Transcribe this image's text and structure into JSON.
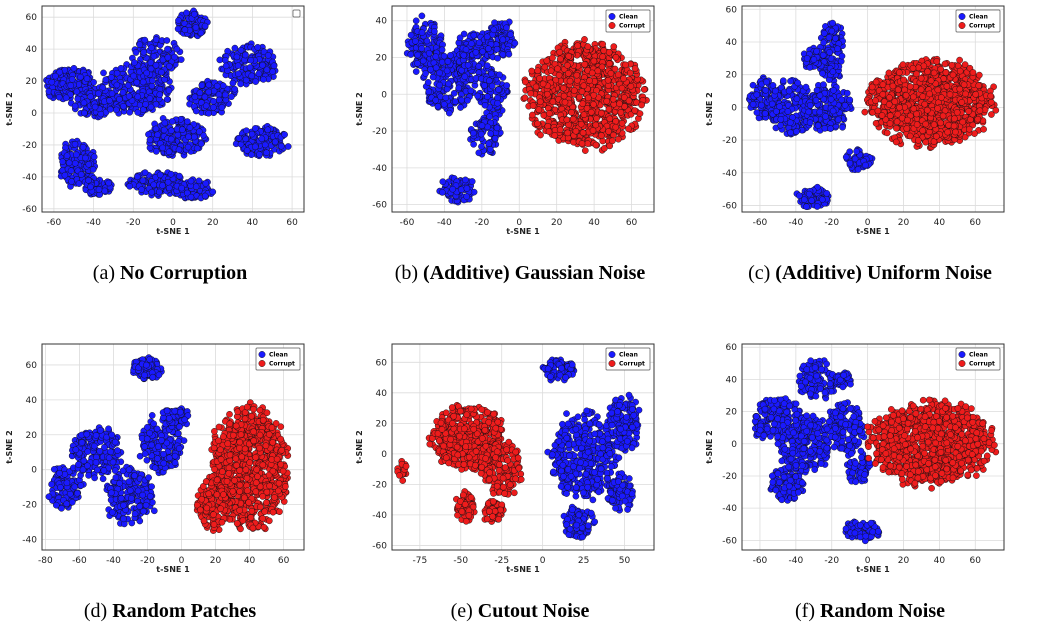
{
  "figure": {
    "panels": [
      {
        "label": "(a)",
        "caption": "No Corruption"
      },
      {
        "label": "(b)",
        "caption": "(Additive) Gaussian Noise"
      },
      {
        "label": "(c)",
        "caption": "(Additive) Uniform Noise"
      },
      {
        "label": "(d)",
        "caption": "Random Patches"
      },
      {
        "label": "(e)",
        "caption": "Cutout Noise"
      },
      {
        "label": "(f)",
        "caption": "Random Noise"
      }
    ]
  },
  "colors": {
    "clean": "#1a1aff",
    "corrupt": "#ee1c1c",
    "grid": "#dcdcdc",
    "edge": "#111111"
  },
  "chart_data": [
    {
      "type": "scatter",
      "xlabel": "t-SNE 1",
      "ylabel": "t-SNE 2",
      "xlim": [
        -66,
        66
      ],
      "ylim": [
        -62,
        67
      ],
      "xticks": [
        -60,
        -40,
        -20,
        0,
        20,
        40,
        60
      ],
      "yticks": [
        -60,
        -40,
        -20,
        0,
        20,
        40,
        60
      ],
      "grid": true,
      "legend": "top-right",
      "legend_entries": [],
      "clusters": [
        {
          "series": "Clean",
          "cx": -52,
          "cy": 18,
          "rx": 12,
          "ry": 10,
          "n": 170
        },
        {
          "series": "Clean",
          "cx": -40,
          "cy": 5,
          "rx": 10,
          "ry": 8,
          "n": 90
        },
        {
          "series": "Clean",
          "cx": -20,
          "cy": 15,
          "rx": 18,
          "ry": 15,
          "n": 260
        },
        {
          "series": "Clean",
          "cx": -8,
          "cy": 35,
          "rx": 12,
          "ry": 12,
          "n": 110
        },
        {
          "series": "Clean",
          "cx": 10,
          "cy": 55,
          "rx": 8,
          "ry": 8,
          "n": 80
        },
        {
          "series": "Clean",
          "cx": 38,
          "cy": 30,
          "rx": 14,
          "ry": 12,
          "n": 150
        },
        {
          "series": "Clean",
          "cx": 20,
          "cy": 10,
          "rx": 12,
          "ry": 10,
          "n": 120
        },
        {
          "series": "Clean",
          "cx": 2,
          "cy": -15,
          "rx": 15,
          "ry": 12,
          "n": 190
        },
        {
          "series": "Clean",
          "cx": 45,
          "cy": -18,
          "rx": 13,
          "ry": 9,
          "n": 140
        },
        {
          "series": "Clean",
          "cx": -48,
          "cy": -32,
          "rx": 9,
          "ry": 14,
          "n": 140
        },
        {
          "series": "Clean",
          "cx": -38,
          "cy": -46,
          "rx": 7,
          "ry": 6,
          "n": 55
        },
        {
          "series": "Clean",
          "cx": -8,
          "cy": -44,
          "rx": 14,
          "ry": 7,
          "n": 120
        },
        {
          "series": "Clean",
          "cx": 10,
          "cy": -48,
          "rx": 10,
          "ry": 6,
          "n": 80
        }
      ]
    },
    {
      "type": "scatter",
      "xlabel": "t-SNE 1",
      "ylabel": "t-SNE 2",
      "xlim": [
        -68,
        72
      ],
      "ylim": [
        -64,
        48
      ],
      "xticks": [
        -60,
        -40,
        -20,
        0,
        20,
        40,
        60
      ],
      "yticks": [
        -60,
        -40,
        -20,
        0,
        20,
        40
      ],
      "grid": true,
      "legend": "top-right",
      "legend_entries": [
        "Clean",
        "Corrupt"
      ],
      "clusters": [
        {
          "series": "Clean",
          "cx": -50,
          "cy": 25,
          "rx": 9,
          "ry": 16,
          "n": 140
        },
        {
          "series": "Clean",
          "cx": -38,
          "cy": 5,
          "rx": 12,
          "ry": 16,
          "n": 170
        },
        {
          "series": "Clean",
          "cx": -24,
          "cy": 20,
          "rx": 10,
          "ry": 14,
          "n": 140
        },
        {
          "series": "Clean",
          "cx": -10,
          "cy": 30,
          "rx": 8,
          "ry": 10,
          "n": 90
        },
        {
          "series": "Clean",
          "cx": -14,
          "cy": 0,
          "rx": 8,
          "ry": 12,
          "n": 90
        },
        {
          "series": "Clean",
          "cx": -18,
          "cy": -22,
          "rx": 8,
          "ry": 10,
          "n": 80
        },
        {
          "series": "Clean",
          "cx": -33,
          "cy": -52,
          "rx": 9,
          "ry": 7,
          "n": 70
        },
        {
          "series": "Corrupt",
          "cx": 35,
          "cy": 0,
          "rx": 30,
          "ry": 28,
          "n": 900
        }
      ]
    },
    {
      "type": "scatter",
      "xlabel": "t-SNE 1",
      "ylabel": "t-SNE 2",
      "xlim": [
        -70,
        76
      ],
      "ylim": [
        -64,
        62
      ],
      "xticks": [
        -60,
        -40,
        -20,
        0,
        20,
        40,
        60
      ],
      "yticks": [
        -60,
        -40,
        -20,
        0,
        20,
        40,
        60
      ],
      "grid": true,
      "legend": "top-right",
      "legend_entries": [
        "Clean",
        "Corrupt"
      ],
      "clusters": [
        {
          "series": "Clean",
          "cx": -58,
          "cy": 5,
          "rx": 8,
          "ry": 12,
          "n": 100
        },
        {
          "series": "Clean",
          "cx": -42,
          "cy": 0,
          "rx": 12,
          "ry": 16,
          "n": 170
        },
        {
          "series": "Clean",
          "cx": -20,
          "cy": 35,
          "rx": 7,
          "ry": 18,
          "n": 130
        },
        {
          "series": "Clean",
          "cx": -22,
          "cy": 0,
          "rx": 12,
          "ry": 14,
          "n": 150
        },
        {
          "series": "Clean",
          "cx": -30,
          "cy": 30,
          "rx": 6,
          "ry": 6,
          "n": 40
        },
        {
          "series": "Clean",
          "cx": -5,
          "cy": -32,
          "rx": 7,
          "ry": 6,
          "n": 60
        },
        {
          "series": "Clean",
          "cx": -30,
          "cy": -55,
          "rx": 10,
          "ry": 6,
          "n": 70
        },
        {
          "series": "Corrupt",
          "cx": 35,
          "cy": 3,
          "rx": 33,
          "ry": 25,
          "n": 950
        }
      ]
    },
    {
      "type": "scatter",
      "xlabel": "t-SNE 1",
      "ylabel": "t-SNE 2",
      "xlim": [
        -82,
        72
      ],
      "ylim": [
        -46,
        72
      ],
      "xticks": [
        -80,
        -60,
        -40,
        -20,
        0,
        20,
        40,
        60
      ],
      "yticks": [
        -40,
        -20,
        0,
        20,
        40,
        60
      ],
      "grid": true,
      "legend": "top-right",
      "legend_entries": [
        "Clean",
        "Corrupt"
      ],
      "clusters": [
        {
          "series": "Clean",
          "cx": -20,
          "cy": 58,
          "rx": 9,
          "ry": 6,
          "n": 80
        },
        {
          "series": "Clean",
          "cx": -68,
          "cy": -10,
          "rx": 10,
          "ry": 12,
          "n": 110
        },
        {
          "series": "Clean",
          "cx": -50,
          "cy": 10,
          "rx": 14,
          "ry": 14,
          "n": 200
        },
        {
          "series": "Clean",
          "cx": -30,
          "cy": -15,
          "rx": 14,
          "ry": 16,
          "n": 190
        },
        {
          "series": "Clean",
          "cx": -12,
          "cy": 15,
          "rx": 12,
          "ry": 16,
          "n": 170
        },
        {
          "series": "Clean",
          "cx": -3,
          "cy": 30,
          "rx": 8,
          "ry": 6,
          "n": 70
        },
        {
          "series": "Corrupt",
          "cx": 40,
          "cy": 0,
          "rx": 22,
          "ry": 34,
          "n": 800
        },
        {
          "series": "Corrupt",
          "cx": 18,
          "cy": -20,
          "rx": 9,
          "ry": 15,
          "n": 120
        }
      ]
    },
    {
      "type": "scatter",
      "xlabel": "t-SNE 1",
      "ylabel": "t-SNE 2",
      "xlim": [
        -92,
        68
      ],
      "ylim": [
        -63,
        72
      ],
      "xticks": [
        -75,
        -50,
        -25,
        0,
        25,
        50
      ],
      "yticks": [
        -60,
        -40,
        -20,
        0,
        20,
        40,
        60
      ],
      "grid": true,
      "legend": "top-right",
      "legend_entries": [
        "Clean",
        "Corrupt"
      ],
      "clusters": [
        {
          "series": "Clean",
          "cx": 10,
          "cy": 55,
          "rx": 9,
          "ry": 7,
          "n": 80
        },
        {
          "series": "Clean",
          "cx": 25,
          "cy": 0,
          "rx": 20,
          "ry": 28,
          "n": 380
        },
        {
          "series": "Clean",
          "cx": 50,
          "cy": 20,
          "rx": 9,
          "ry": 18,
          "n": 150
        },
        {
          "series": "Clean",
          "cx": 22,
          "cy": -45,
          "rx": 10,
          "ry": 10,
          "n": 90
        },
        {
          "series": "Clean",
          "cx": 48,
          "cy": -25,
          "rx": 8,
          "ry": 12,
          "n": 80
        },
        {
          "series": "Corrupt",
          "cx": -45,
          "cy": 10,
          "rx": 22,
          "ry": 20,
          "n": 450
        },
        {
          "series": "Corrupt",
          "cx": -25,
          "cy": -10,
          "rx": 12,
          "ry": 18,
          "n": 150
        },
        {
          "series": "Corrupt",
          "cx": -47,
          "cy": -35,
          "rx": 6,
          "ry": 10,
          "n": 60
        },
        {
          "series": "Corrupt",
          "cx": -30,
          "cy": -38,
          "rx": 6,
          "ry": 8,
          "n": 50
        },
        {
          "series": "Corrupt",
          "cx": -86,
          "cy": -11,
          "rx": 3,
          "ry": 7,
          "n": 15
        }
      ]
    },
    {
      "type": "scatter",
      "xlabel": "t-SNE 1",
      "ylabel": "t-SNE 2",
      "xlim": [
        -70,
        76
      ],
      "ylim": [
        -66,
        62
      ],
      "xticks": [
        -60,
        -40,
        -20,
        0,
        20,
        40,
        60
      ],
      "yticks": [
        -60,
        -40,
        -20,
        0,
        20,
        40,
        60
      ],
      "grid": true,
      "legend": "top-right",
      "legend_entries": [
        "Clean",
        "Corrupt"
      ],
      "clusters": [
        {
          "series": "Clean",
          "cx": -28,
          "cy": 40,
          "rx": 10,
          "ry": 12,
          "n": 110
        },
        {
          "series": "Clean",
          "cx": -50,
          "cy": 15,
          "rx": 14,
          "ry": 14,
          "n": 170
        },
        {
          "series": "Clean",
          "cx": -35,
          "cy": 0,
          "rx": 14,
          "ry": 18,
          "n": 220
        },
        {
          "series": "Clean",
          "cx": -45,
          "cy": -25,
          "rx": 9,
          "ry": 10,
          "n": 100
        },
        {
          "series": "Clean",
          "cx": -12,
          "cy": 10,
          "rx": 10,
          "ry": 16,
          "n": 150
        },
        {
          "series": "Clean",
          "cx": -14,
          "cy": 40,
          "rx": 5,
          "ry": 5,
          "n": 30
        },
        {
          "series": "Clean",
          "cx": -5,
          "cy": -15,
          "rx": 6,
          "ry": 10,
          "n": 60
        },
        {
          "series": "Clean",
          "cx": -3,
          "cy": -54,
          "rx": 10,
          "ry": 6,
          "n": 70
        },
        {
          "series": "Corrupt",
          "cx": 35,
          "cy": 0,
          "rx": 33,
          "ry": 25,
          "n": 950
        }
      ]
    }
  ]
}
